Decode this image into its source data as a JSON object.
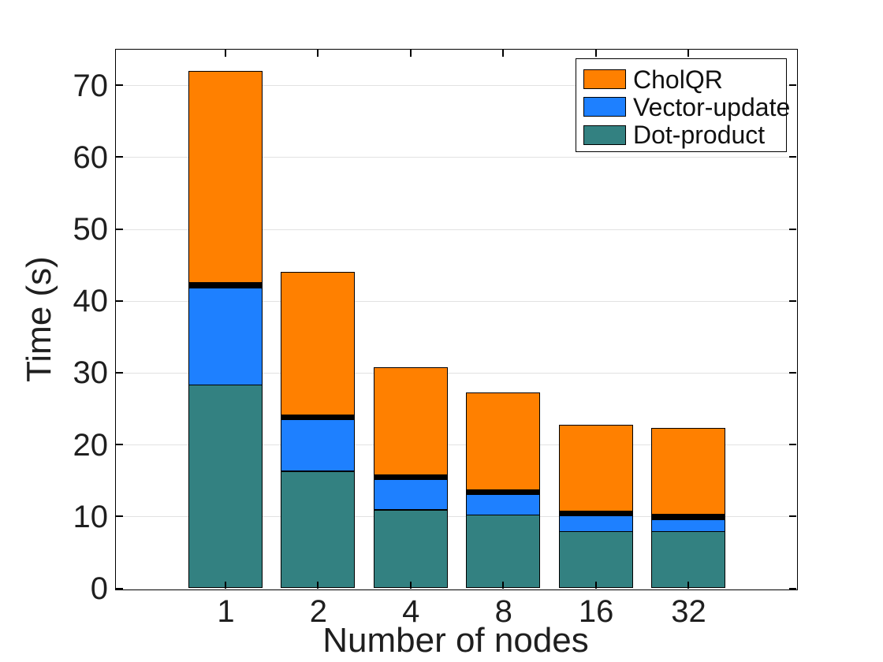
{
  "chart_data": {
    "type": "bar",
    "stacked": true,
    "title": "",
    "xlabel": "Number of nodes",
    "ylabel": "Time (s)",
    "categories": [
      "1",
      "2",
      "4",
      "8",
      "16",
      "32"
    ],
    "series": [
      {
        "name": "Dot-product",
        "color": "#338181",
        "in_legend": true,
        "values": [
          28.3,
          16.3,
          10.9,
          10.2,
          7.9,
          7.9
        ]
      },
      {
        "name": "Vector-update",
        "color": "#1e80ff",
        "in_legend": true,
        "values": [
          13.5,
          7.2,
          4.3,
          2.9,
          2.2,
          1.7
        ]
      },
      {
        "name": "unlabeled-black-band",
        "color": "#000000",
        "in_legend": false,
        "values": [
          0.7,
          0.6,
          0.6,
          0.6,
          0.6,
          0.7
        ]
      },
      {
        "name": "CholQR",
        "color": "#ff8000",
        "in_legend": true,
        "values": [
          29.5,
          19.9,
          15.0,
          13.5,
          12.1,
          12.0
        ]
      }
    ],
    "totals": [
      72.0,
      44.0,
      30.8,
      27.2,
      22.8,
      22.3
    ],
    "ylim": [
      0,
      75
    ],
    "yticks": [
      0,
      10,
      20,
      30,
      40,
      50,
      60,
      70
    ],
    "grid": "horizontal-only",
    "grid_color": "#e2e2e2",
    "edge_color": "#000000",
    "background": "#ffffff",
    "legend": {
      "position": "top-right",
      "entries": [
        "CholQR",
        "Vector-update",
        "Dot-product"
      ]
    }
  }
}
